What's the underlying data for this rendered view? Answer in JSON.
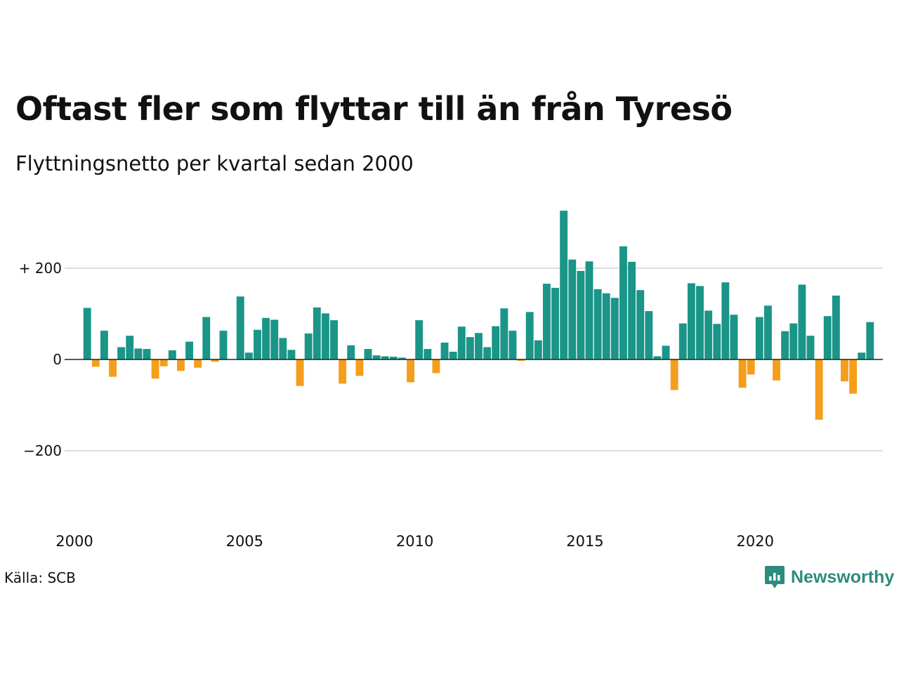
{
  "title": "Oftast fler som flyttar till än från Tyresö",
  "subtitle": "Flyttningsnetto per kvartal sedan 2000",
  "source": "Källa: SCB",
  "brand": "Newsworthy",
  "colors": {
    "positive": "#1a9588",
    "negative": "#f59e1b",
    "brand": "#2e8b7f",
    "grid": "#dddddd",
    "zero_line": "#222222"
  },
  "chart_data": {
    "type": "bar",
    "y_ticks": [
      {
        "value": 200,
        "label": "+ 200"
      },
      {
        "value": 0,
        "label": "0"
      },
      {
        "value": -200,
        "label": "−200"
      }
    ],
    "x_ticks": [
      {
        "year": 2000,
        "label": "2000"
      },
      {
        "year": 2005,
        "label": "2005"
      },
      {
        "year": 2010,
        "label": "2010"
      },
      {
        "year": 2015,
        "label": "2015"
      },
      {
        "year": 2020,
        "label": "2020"
      }
    ],
    "ylim": [
      -330,
      330
    ],
    "xlim": [
      2000,
      2023.75
    ],
    "grid": true,
    "start_year": 2000,
    "values": [
      0,
      113,
      -16,
      63,
      -38,
      27,
      52,
      24,
      23,
      -42,
      -15,
      20,
      -25,
      39,
      -18,
      93,
      -5,
      63,
      0,
      138,
      15,
      65,
      91,
      87,
      47,
      21,
      -58,
      57,
      114,
      101,
      86,
      -53,
      31,
      -36,
      23,
      9,
      7,
      6,
      4,
      -50,
      86,
      23,
      -30,
      37,
      17,
      72,
      49,
      58,
      27,
      73,
      112,
      63,
      -3,
      104,
      42,
      166,
      157,
      326,
      219,
      194,
      215,
      154,
      145,
      135,
      248,
      214,
      152,
      106,
      7,
      30,
      -67,
      79,
      167,
      161,
      107,
      78,
      169,
      98,
      -62,
      -33,
      93,
      118,
      -46,
      62,
      79,
      164,
      52,
      -132,
      95,
      140,
      -48,
      -75,
      15,
      82
    ]
  }
}
